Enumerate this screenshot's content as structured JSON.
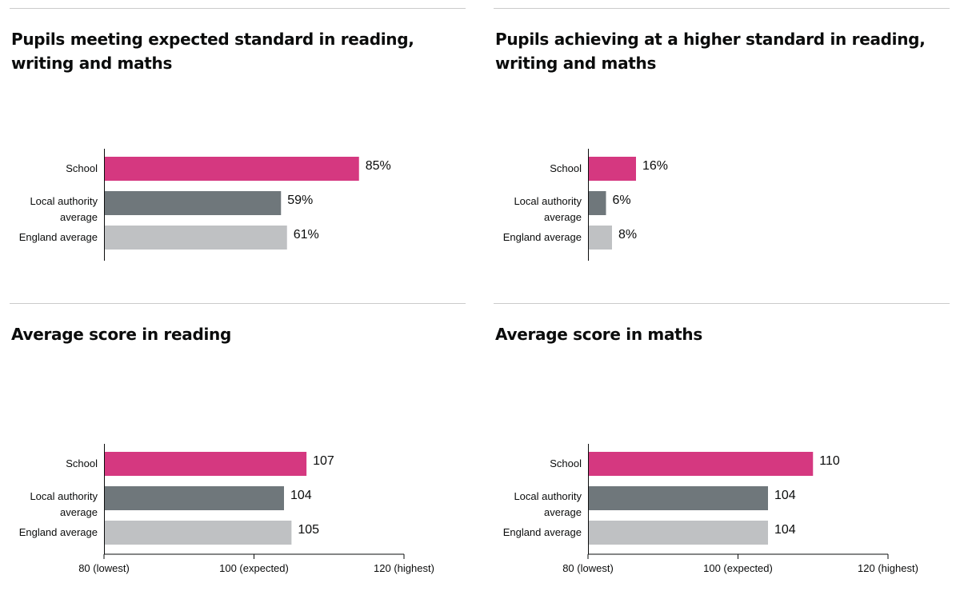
{
  "colors": {
    "school": "#d53880",
    "local": "#6f777b",
    "england": "#bfc1c3",
    "axis": "#0b0c0c"
  },
  "chart_data": [
    {
      "type": "bar",
      "title": "Pupils meeting expected standard in reading, writing and maths",
      "categories": [
        "School",
        "Local authority average",
        "England average"
      ],
      "category_lines": [
        [
          "School"
        ],
        [
          "Local authority",
          "average"
        ],
        [
          "England average"
        ]
      ],
      "values": [
        85,
        59,
        61
      ],
      "value_labels": [
        "85%",
        "59%",
        "61%"
      ],
      "xlim": [
        0,
        100
      ],
      "ticks": []
    },
    {
      "type": "bar",
      "title": "Pupils achieving at a higher standard in reading, writing and maths",
      "categories": [
        "School",
        "Local authority average",
        "England average"
      ],
      "category_lines": [
        [
          "School"
        ],
        [
          "Local authority",
          "average"
        ],
        [
          "England average"
        ]
      ],
      "values": [
        16,
        6,
        8
      ],
      "value_labels": [
        "16%",
        "6%",
        "8%"
      ],
      "xlim": [
        0,
        100
      ],
      "ticks": []
    },
    {
      "type": "bar",
      "title": "Average score in reading",
      "categories": [
        "School",
        "Local authority average",
        "England average"
      ],
      "category_lines": [
        [
          "School"
        ],
        [
          "Local authority",
          "average"
        ],
        [
          "England average"
        ]
      ],
      "values": [
        107,
        104,
        105
      ],
      "value_labels": [
        "107",
        "104",
        "105"
      ],
      "xlim": [
        80,
        120
      ],
      "ticks": [
        {
          "value": 80,
          "label": "80 (lowest)"
        },
        {
          "value": 100,
          "label": "100 (expected)"
        },
        {
          "value": 120,
          "label": "120 (highest)"
        }
      ]
    },
    {
      "type": "bar",
      "title": "Average score in maths",
      "categories": [
        "School",
        "Local authority average",
        "England average"
      ],
      "category_lines": [
        [
          "School"
        ],
        [
          "Local authority",
          "average"
        ],
        [
          "England average"
        ]
      ],
      "values": [
        110,
        104,
        104
      ],
      "value_labels": [
        "110",
        "104",
        "104"
      ],
      "xlim": [
        80,
        120
      ],
      "ticks": [
        {
          "value": 80,
          "label": "80 (lowest)"
        },
        {
          "value": 100,
          "label": "100 (expected)"
        },
        {
          "value": 120,
          "label": "120 (highest)"
        }
      ]
    }
  ]
}
